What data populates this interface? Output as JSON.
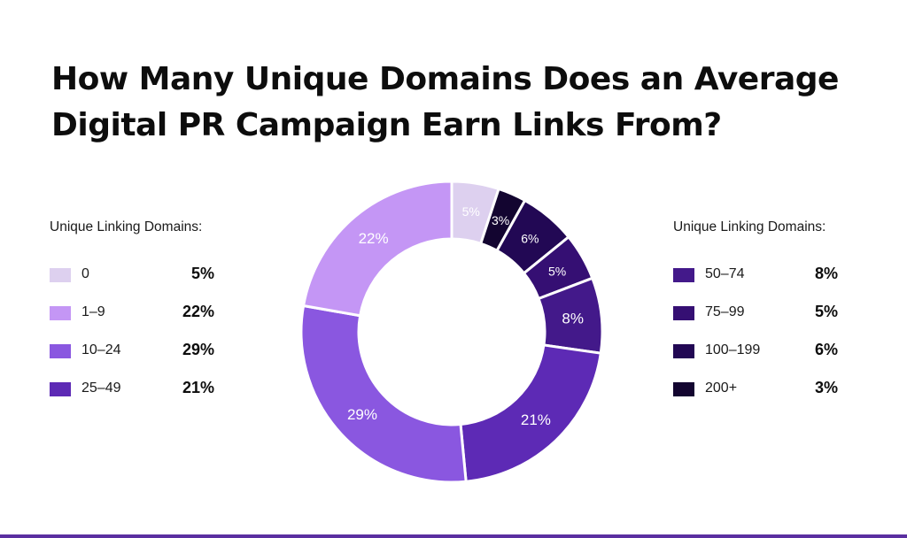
{
  "title": "How Many Unique Domains Does an Average Digital PR Campaign Earn Links From?",
  "legend": {
    "heading": "Unique Linking Domains:",
    "left": [
      {
        "range": "0",
        "pct": "5%",
        "color": "#ddd0ef"
      },
      {
        "range": "1–9",
        "pct": "22%",
        "color": "#c496f5"
      },
      {
        "range": "10–24",
        "pct": "29%",
        "color": "#8a57e0"
      },
      {
        "range": "25–49",
        "pct": "21%",
        "color": "#5d2ab5"
      }
    ],
    "right": [
      {
        "range": "50–74",
        "pct": "8%",
        "color": "#43198a"
      },
      {
        "range": "75–99",
        "pct": "5%",
        "color": "#350f73"
      },
      {
        "range": "100–199",
        "pct": "6%",
        "color": "#220854"
      },
      {
        "range": "200+",
        "pct": "3%",
        "color": "#130530"
      }
    ]
  },
  "chart_data": {
    "type": "pie",
    "variant": "donut",
    "title": "How Many Unique Domains Does an Average Digital PR Campaign Earn Links From?",
    "legend_title": "Unique Linking Domains:",
    "categories": [
      "0",
      "50–74",
      "75–99",
      "100–199",
      "200+",
      "25–49",
      "10–24",
      "1–9"
    ],
    "slices": [
      {
        "label": "0",
        "value": 5,
        "display": "5%",
        "color": "#ddd0ef"
      },
      {
        "label": "200+",
        "value": 3,
        "display": "3%",
        "color": "#130530"
      },
      {
        "label": "100–199",
        "value": 6,
        "display": "6%",
        "color": "#220854"
      },
      {
        "label": "75–99",
        "value": 5,
        "display": "5%",
        "color": "#350f73"
      },
      {
        "label": "50–74",
        "value": 8,
        "display": "8%",
        "color": "#43198a"
      },
      {
        "label": "25–49",
        "value": 21,
        "display": "21%",
        "color": "#5d2ab5"
      },
      {
        "label": "10–24",
        "value": 29,
        "display": "29%",
        "color": "#8a57e0"
      },
      {
        "label": "1–9",
        "value": 22,
        "display": "22%",
        "color": "#c496f5"
      }
    ],
    "legend_placement": "left and right"
  },
  "colors": {
    "bottom_rule": "#5a2fa0"
  }
}
